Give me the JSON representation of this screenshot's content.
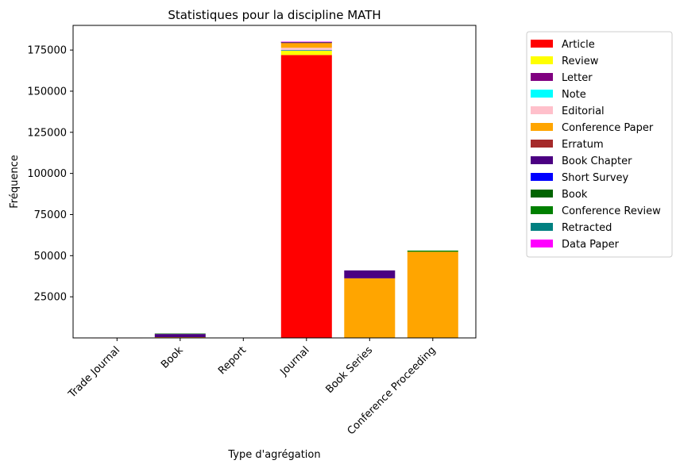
{
  "chart_data": {
    "type": "bar",
    "stacked": true,
    "title": "Statistiques pour la discipline MATH",
    "xlabel": "Type d'agrégation",
    "ylabel": "Fréquence",
    "categories": [
      "Trade Journal",
      "Book",
      "Report",
      "Journal",
      "Book Series",
      "Conference Proceeding"
    ],
    "yticks": [
      25000,
      50000,
      75000,
      100000,
      125000,
      150000,
      175000
    ],
    "ylim": [
      0,
      190000
    ],
    "legend_position": "outside-right",
    "grid": false,
    "series": [
      {
        "name": "Article",
        "color": "#ff0000",
        "values": [
          40,
          300,
          80,
          172000,
          150,
          100
        ]
      },
      {
        "name": "Review",
        "color": "#ffff00",
        "values": [
          0,
          50,
          0,
          2600,
          80,
          0
        ]
      },
      {
        "name": "Letter",
        "color": "#800080",
        "values": [
          0,
          0,
          0,
          300,
          0,
          0
        ]
      },
      {
        "name": "Note",
        "color": "#00ffff",
        "values": [
          0,
          0,
          0,
          200,
          0,
          0
        ]
      },
      {
        "name": "Editorial",
        "color": "#ffc0cb",
        "values": [
          0,
          0,
          0,
          1300,
          0,
          0
        ]
      },
      {
        "name": "Conference Paper",
        "color": "#ffa500",
        "values": [
          0,
          100,
          0,
          2800,
          36000,
          52300
        ]
      },
      {
        "name": "Erratum",
        "color": "#a52a2a",
        "values": [
          0,
          0,
          0,
          500,
          0,
          0
        ]
      },
      {
        "name": "Book Chapter",
        "color": "#4b0082",
        "values": [
          0,
          1900,
          0,
          0,
          4800,
          0
        ]
      },
      {
        "name": "Short Survey",
        "color": "#0000ff",
        "values": [
          0,
          0,
          0,
          150,
          0,
          0
        ]
      },
      {
        "name": "Book",
        "color": "#006400",
        "values": [
          0,
          300,
          0,
          0,
          0,
          0
        ]
      },
      {
        "name": "Conference Review",
        "color": "#008000",
        "values": [
          0,
          0,
          0,
          150,
          0,
          700
        ]
      },
      {
        "name": "Retracted",
        "color": "#008080",
        "values": [
          0,
          0,
          0,
          50,
          0,
          0
        ]
      },
      {
        "name": "Data Paper",
        "color": "#ff00ff",
        "values": [
          0,
          0,
          0,
          50,
          0,
          0
        ]
      }
    ]
  }
}
